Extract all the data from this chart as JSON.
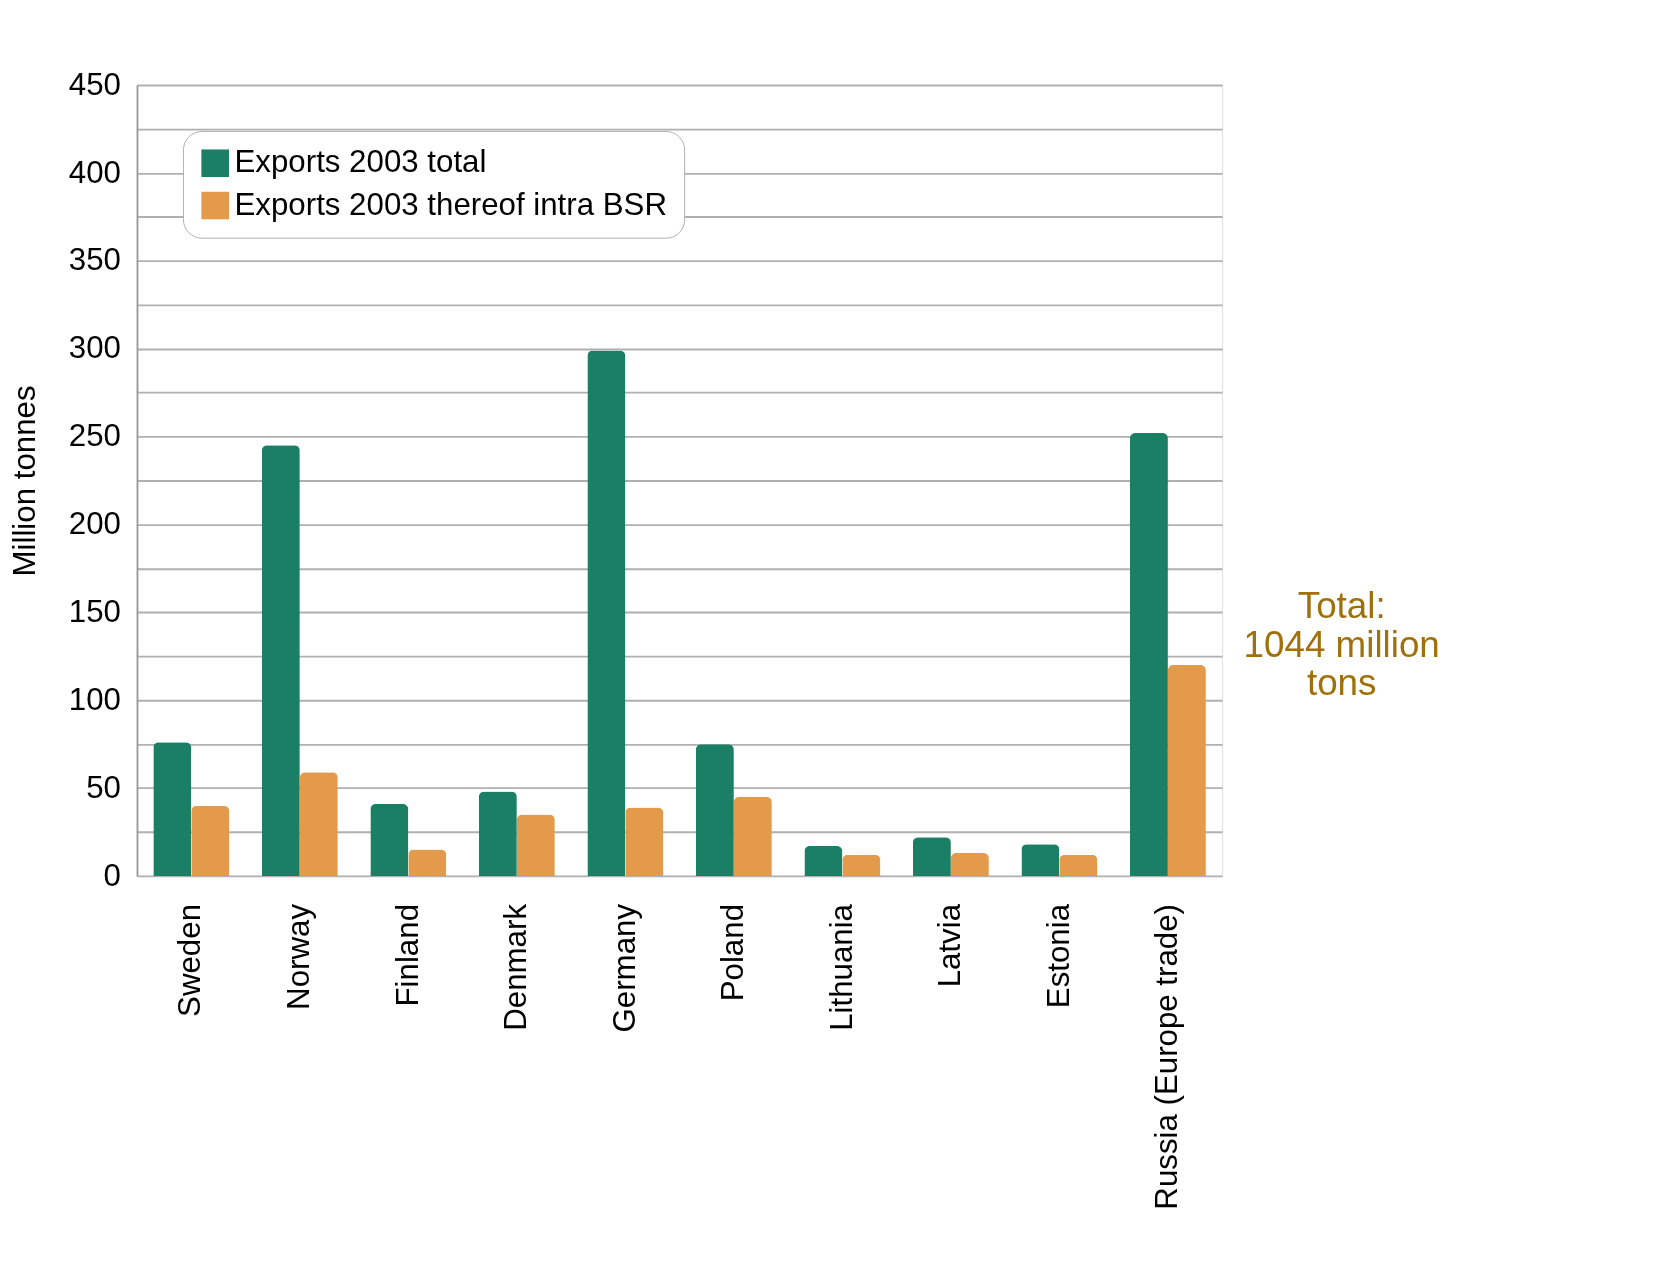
{
  "chart_data": {
    "type": "bar",
    "ylabel": "Million tonnes",
    "categories": [
      "Sweden",
      "Norway",
      "Finland",
      "Denmark",
      "Germany",
      "Poland",
      "Lithuania",
      "Latvia",
      "Estonia",
      "Russia (Europe trade)"
    ],
    "series": [
      {
        "name": "Exports 2003 total",
        "color": "#1a7f64",
        "values": [
          76,
          245,
          41,
          48,
          299,
          75,
          17,
          22,
          18,
          252
        ]
      },
      {
        "name": "Exports 2003 thereof intra BSR",
        "color": "#e39a4a",
        "values": [
          40,
          59,
          15,
          35,
          39,
          45,
          12,
          13,
          12,
          120
        ]
      }
    ],
    "ylim": [
      0,
      450
    ],
    "yticks": [
      0,
      {
        "value": 25,
        "label": null
      },
      50,
      {
        "value": 75,
        "label": null
      },
      100,
      {
        "value": 125,
        "label": null
      },
      150,
      {
        "value": 175,
        "label": null
      },
      200,
      {
        "value": 225,
        "label": null
      },
      250,
      {
        "value": 275,
        "label": null
      },
      300,
      {
        "value": 325,
        "label": null
      },
      350,
      {
        "value": 375,
        "label": null
      },
      400,
      {
        "value": 425,
        "label": null
      },
      450
    ],
    "grid": "y",
    "legend": "top left",
    "annotations": [
      "Total:\n1044 million\ntons"
    ]
  }
}
